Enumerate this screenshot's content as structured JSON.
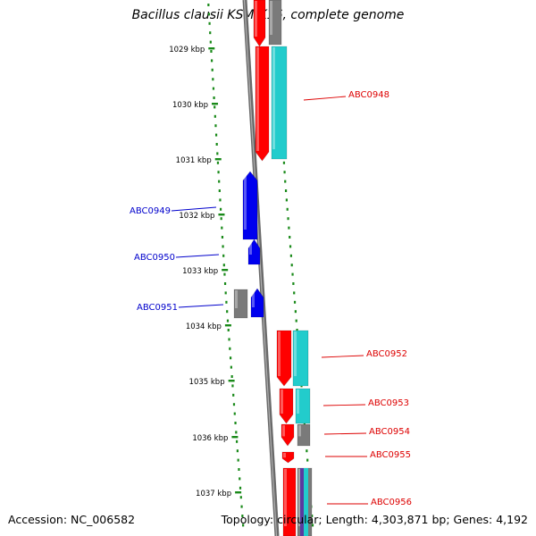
{
  "title": "Bacillus clausii KSM-K16, complete genome",
  "footer": {
    "accession": "Accession: NC_006582",
    "topology": "Topology: circular; Length: 4,303,871 bp; Genes: 4,192"
  },
  "colors": {
    "background": "#ffffff",
    "backbone": "#808080",
    "tick": "#1a8a1a",
    "forward_cds": "#ff0000",
    "reverse_cds": "#0000ee",
    "forward_rna_cog": "#22cccc",
    "gray_feature": "#7a7a7a",
    "label_red": "#dd0000",
    "label_blue": "#0000cc"
  },
  "scale_labels": [
    "1029 kbp",
    "1030 kbp",
    "1031 kbp",
    "1032 kbp",
    "1033 kbp",
    "1034 kbp",
    "1035 kbp",
    "1036 kbp",
    "1037 kbp"
  ],
  "gene_labels": [
    {
      "text": "ABC0948",
      "strand": "forward"
    },
    {
      "text": "ABC0949",
      "strand": "reverse"
    },
    {
      "text": "ABC0950",
      "strand": "reverse"
    },
    {
      "text": "ABC0951",
      "strand": "reverse"
    },
    {
      "text": "ABC0952",
      "strand": "forward"
    },
    {
      "text": "ABC0953",
      "strand": "forward"
    },
    {
      "text": "ABC0954",
      "strand": "forward"
    },
    {
      "text": "ABC0955",
      "strand": "forward"
    },
    {
      "text": "ABC0956",
      "strand": "forward"
    }
  ]
}
